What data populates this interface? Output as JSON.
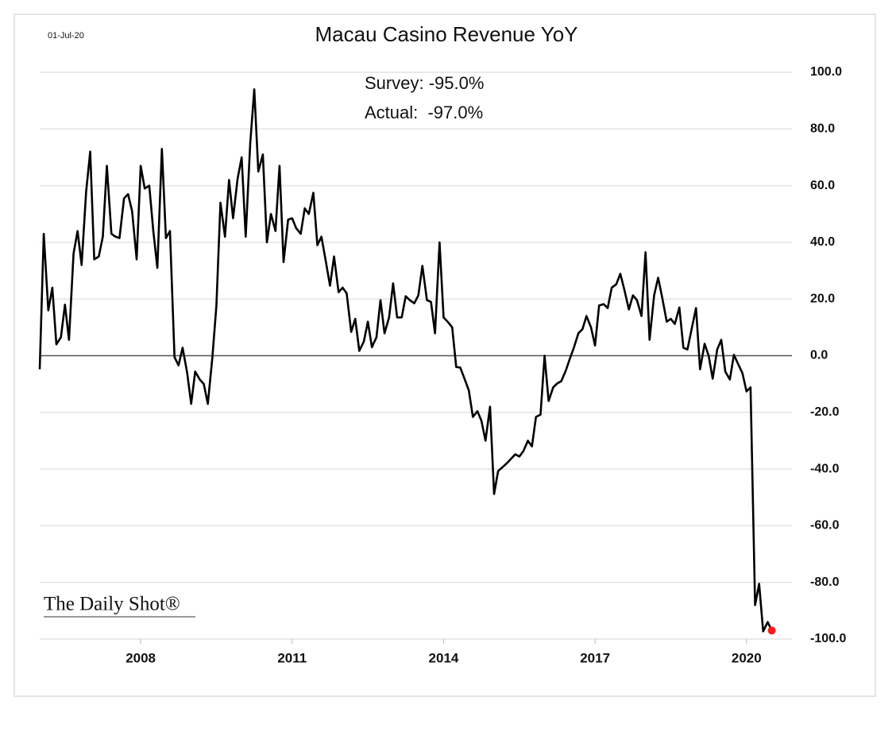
{
  "chart_data": {
    "type": "line",
    "title": "Macau Casino Revenue YoY",
    "date_label": "01-Jul-20",
    "annotations": [
      "Survey: -95.0%",
      "Actual:  -97.0%"
    ],
    "source": "The Daily Shot®",
    "color": "#000000",
    "last_point_color": "#ff1a1a",
    "grid": true,
    "xlim": [
      2006,
      2020.9
    ],
    "xticks": [
      2008,
      2011,
      2014,
      2017,
      2020
    ],
    "ylim": [
      -100,
      100
    ],
    "yticks": [
      {
        "value": 100,
        "label": "100.0"
      },
      {
        "value": 80,
        "label": "80.0"
      },
      {
        "value": 60,
        "label": "60.0"
      },
      {
        "value": 40,
        "label": "40.0"
      },
      {
        "value": 20,
        "label": "20.0"
      },
      {
        "value": 0,
        "label": "0.0"
      },
      {
        "value": -20,
        "label": "-20.0"
      },
      {
        "value": -40,
        "label": "-40.0"
      },
      {
        "value": -60,
        "label": "-60.0"
      },
      {
        "value": -80,
        "label": "-80.0"
      },
      {
        "value": -100,
        "label": "-100.0"
      }
    ],
    "x": [
      2006,
      2006.08,
      2006.17,
      2006.25,
      2006.33,
      2006.42,
      2006.5,
      2006.58,
      2006.67,
      2006.75,
      2006.83,
      2006.92,
      2007,
      2007.08,
      2007.17,
      2007.25,
      2007.33,
      2007.42,
      2007.5,
      2007.58,
      2007.67,
      2007.75,
      2007.83,
      2007.92,
      2008,
      2008.08,
      2008.17,
      2008.25,
      2008.33,
      2008.42,
      2008.5,
      2008.58,
      2008.67,
      2008.75,
      2008.83,
      2008.92,
      2009,
      2009.08,
      2009.17,
      2009.25,
      2009.33,
      2009.42,
      2009.5,
      2009.58,
      2009.67,
      2009.75,
      2009.83,
      2009.92,
      2010,
      2010.08,
      2010.17,
      2010.25,
      2010.33,
      2010.42,
      2010.5,
      2010.58,
      2010.67,
      2010.75,
      2010.83,
      2010.92,
      2011,
      2011.08,
      2011.17,
      2011.25,
      2011.33,
      2011.42,
      2011.5,
      2011.58,
      2011.67,
      2011.75,
      2011.83,
      2011.92,
      2012,
      2012.08,
      2012.17,
      2012.25,
      2012.33,
      2012.42,
      2012.5,
      2012.58,
      2012.67,
      2012.75,
      2012.83,
      2012.92,
      2013,
      2013.08,
      2013.17,
      2013.25,
      2013.33,
      2013.42,
      2013.5,
      2013.58,
      2013.67,
      2013.75,
      2013.83,
      2013.92,
      2014,
      2014.08,
      2014.17,
      2014.25,
      2014.33,
      2014.42,
      2014.5,
      2014.58,
      2014.67,
      2014.75,
      2014.83,
      2014.92,
      2015,
      2015.08,
      2015.17,
      2015.25,
      2015.33,
      2015.42,
      2015.5,
      2015.58,
      2015.67,
      2015.75,
      2015.83,
      2015.92,
      2016,
      2016.08,
      2016.17,
      2016.25,
      2016.33,
      2016.42,
      2016.5,
      2016.58,
      2016.67,
      2016.75,
      2016.83,
      2016.92,
      2017,
      2017.08,
      2017.17,
      2017.25,
      2017.33,
      2017.42,
      2017.5,
      2017.58,
      2017.67,
      2017.75,
      2017.83,
      2017.92,
      2018,
      2018.08,
      2018.17,
      2018.25,
      2018.33,
      2018.42,
      2018.5,
      2018.58,
      2018.67,
      2018.75,
      2018.83,
      2018.92,
      2019,
      2019.08,
      2019.17,
      2019.25,
      2019.33,
      2019.42,
      2019.5,
      2019.58,
      2019.67,
      2019.75,
      2019.83,
      2019.92,
      2020,
      2020.08,
      2020.17,
      2020.25,
      2020.33,
      2020.42,
      2020.5
    ],
    "values": [
      -4.8,
      43,
      16,
      24,
      4,
      6.5,
      18,
      5.6,
      36,
      44,
      32,
      58,
      72,
      34,
      35,
      42,
      67,
      43,
      42,
      41.5,
      55.5,
      57,
      51,
      34,
      67,
      59,
      60,
      44,
      31,
      73,
      41.5,
      44,
      -0.5,
      -3.4,
      2.8,
      -6,
      -17,
      -5.6,
      -8.4,
      -10,
      -17,
      -0.6,
      17.7,
      54,
      42,
      62,
      48.5,
      62.5,
      70,
      42,
      75,
      94,
      65,
      71,
      40,
      50,
      44,
      67,
      33,
      48,
      48.5,
      45,
      43,
      52,
      50,
      57.5,
      39,
      42,
      33,
      24.7,
      35,
      22.4,
      24,
      22,
      8.4,
      13,
      1.7,
      5,
      12,
      3,
      6.5,
      19.6,
      7.9,
      13.5,
      25.5,
      13.5,
      13.5,
      21,
      19.6,
      18.5,
      21.3,
      31.7,
      19.6,
      19,
      7.9,
      40,
      13.5,
      12,
      10,
      -4,
      -4.2,
      -8.4,
      -12.3,
      -21.6,
      -19.6,
      -23,
      -30,
      -18,
      -48.8,
      -40.7,
      -39.3,
      -38,
      -36.5,
      -34.8,
      -35.6,
      -33.7,
      -30,
      -32,
      -21.6,
      -20.8,
      0,
      -16,
      -11.2,
      -9.8,
      -9,
      -5.3,
      -1.1,
      2.8,
      7.9,
      9.3,
      14,
      10,
      3.6,
      17.7,
      18.2,
      16.8,
      24,
      25.2,
      28.9,
      23.3,
      16.3,
      21.3,
      19.6,
      14,
      36.5,
      5.6,
      21.3,
      27.5,
      20.5,
      12,
      13,
      11.2,
      17,
      2.8,
      2.2,
      10,
      16.8,
      -4.8,
      4.2,
      0,
      -8.1,
      2.2,
      5.6,
      -5.6,
      -8.4,
      0.3,
      -2.8,
      -6.2,
      -12.6,
      -11.2,
      -88,
      -80.5,
      -97.3,
      -94,
      -97
    ]
  }
}
